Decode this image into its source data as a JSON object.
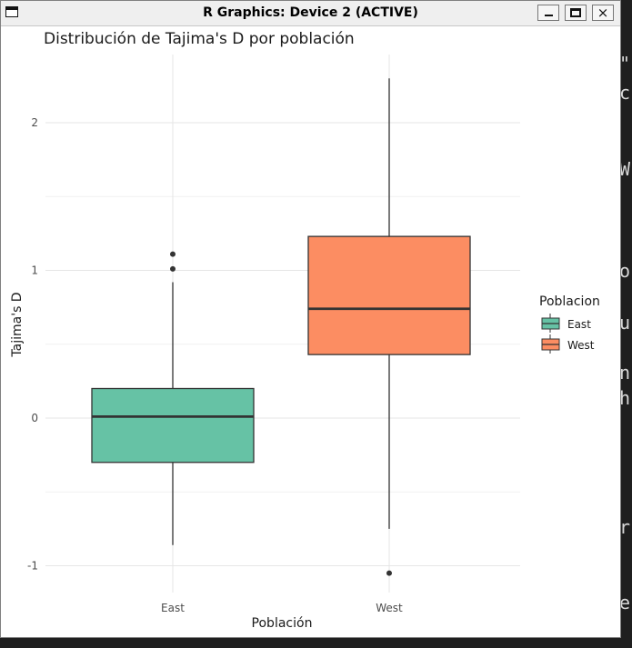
{
  "window": {
    "title": "R Graphics: Device 2 (ACTIVE)",
    "buttons": {
      "minimize": "minimize-icon",
      "maximize": "maximize-icon",
      "close": "×"
    }
  },
  "background_terminal": {
    "chars": [
      "\"",
      "c",
      "W",
      "o",
      "u",
      "n",
      "h",
      "r",
      "e"
    ]
  },
  "chart_data": {
    "type": "boxplot",
    "title": "Distribución de Tajima's D por población",
    "xlabel": "Población",
    "ylabel": "Tajima's D",
    "ylim": [
      -1.2,
      2.45
    ],
    "yticks": [
      -1,
      0,
      1,
      2
    ],
    "ytick_labels": [
      "-1",
      "0",
      "1",
      "2"
    ],
    "grid": true,
    "legend": {
      "title": "Poblacion",
      "position": "right"
    },
    "categories": [
      "East",
      "West"
    ],
    "boxes": [
      {
        "name": "East",
        "color": "#66c2a5",
        "whisker_low": -0.86,
        "q1": -0.3,
        "median": 0.01,
        "q3": 0.2,
        "whisker_high": 0.92,
        "outliers": [
          1.01,
          1.11
        ]
      },
      {
        "name": "West",
        "color": "#fc8d62",
        "whisker_low": -0.75,
        "q1": 0.43,
        "median": 0.74,
        "q3": 1.23,
        "whisker_high": 2.3,
        "outliers": [
          -1.05
        ]
      }
    ]
  }
}
